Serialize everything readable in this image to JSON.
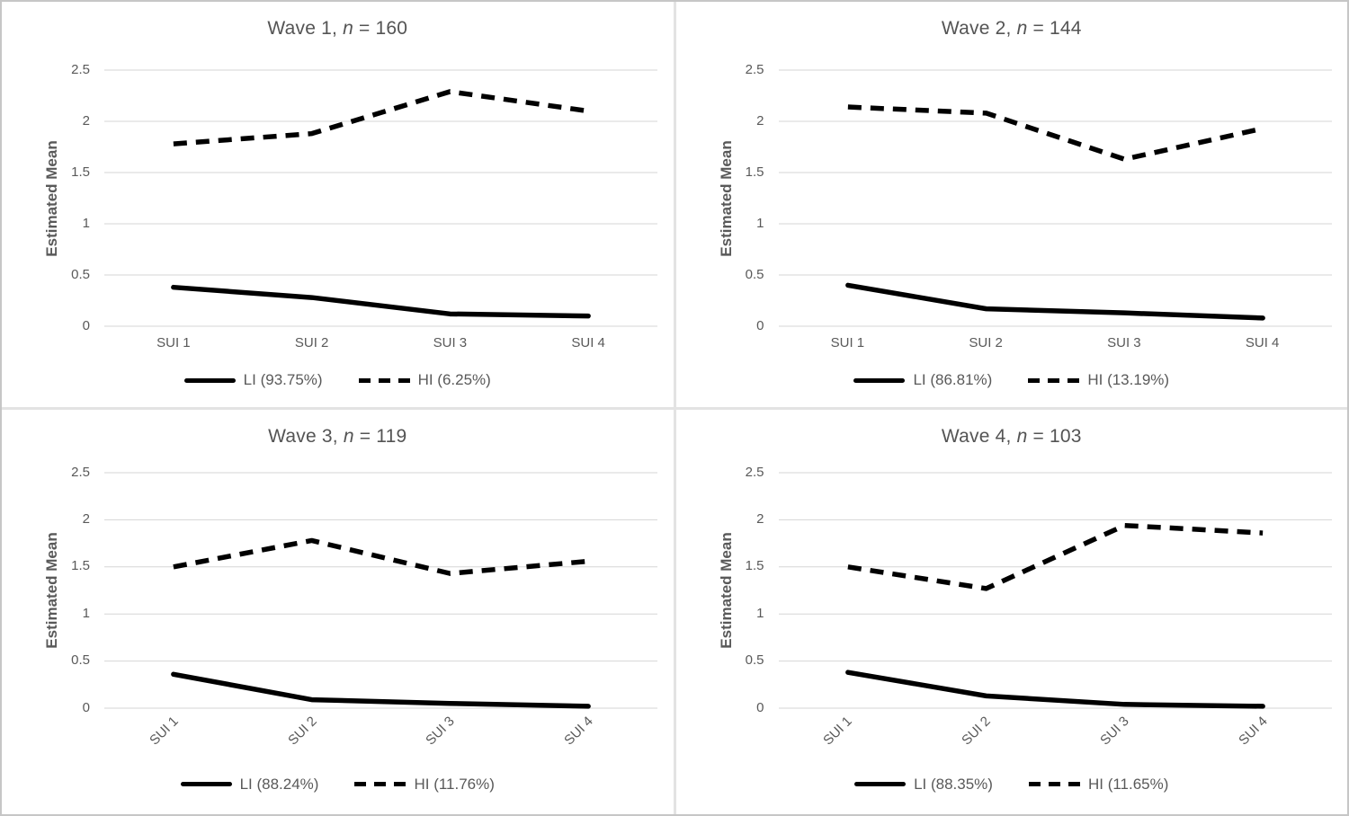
{
  "figure": {
    "ylabel": "Estimated Mean",
    "colors": {
      "line": "#000000",
      "grid": "#d6d6d6",
      "text": "#595959",
      "divider": "#e3e3e3",
      "border": "#c6c6c6",
      "background": "#ffffff"
    }
  },
  "chart_data": [
    {
      "type": "line",
      "title": "Wave 1, n = 160",
      "title_prefix": "Wave 1, ",
      "title_italic": "n",
      "title_suffix": " = 160",
      "n": 160,
      "ylabel": "Estimated Mean",
      "xlabel": "",
      "ylim": [
        0,
        2.5
      ],
      "yticks": [
        0,
        0.5,
        1,
        1.5,
        2,
        2.5
      ],
      "ytick_labels": [
        "0",
        "0.5",
        "1",
        "1.5",
        "2",
        "2.5"
      ],
      "categories": [
        "SUI 1",
        "SUI 2",
        "SUI 3",
        "SUI 4"
      ],
      "x_label_rotation": 0,
      "grid": true,
      "legend_position": "bottom",
      "series": [
        {
          "name": "LI",
          "label": "LI (93.75%)",
          "percent": "93.75%",
          "style": "solid",
          "values": [
            0.38,
            0.28,
            0.12,
            0.1
          ]
        },
        {
          "name": "HI",
          "label": "HI (6.25%)",
          "percent": "6.25%",
          "style": "dashed",
          "values": [
            1.78,
            1.88,
            2.29,
            2.1
          ]
        }
      ]
    },
    {
      "type": "line",
      "title": "Wave 2, n = 144",
      "title_prefix": "Wave 2, ",
      "title_italic": "n",
      "title_suffix": " = 144",
      "n": 144,
      "ylabel": "Estimated Mean",
      "xlabel": "",
      "ylim": [
        0,
        2.5
      ],
      "yticks": [
        0,
        0.5,
        1,
        1.5,
        2,
        2.5
      ],
      "ytick_labels": [
        "0",
        "0.5",
        "1",
        "1.5",
        "2",
        "2.5"
      ],
      "categories": [
        "SUI 1",
        "SUI 2",
        "SUI 3",
        "SUI 4"
      ],
      "x_label_rotation": 0,
      "grid": true,
      "legend_position": "bottom",
      "series": [
        {
          "name": "LI",
          "label": "LI (86.81%)",
          "percent": "86.81%",
          "style": "solid",
          "values": [
            0.4,
            0.17,
            0.13,
            0.08
          ]
        },
        {
          "name": "HI",
          "label": "HI (13.19%)",
          "percent": "13.19%",
          "style": "dashed",
          "values": [
            2.14,
            2.08,
            1.63,
            1.93
          ]
        }
      ]
    },
    {
      "type": "line",
      "title": "Wave 3, n = 119",
      "title_prefix": "Wave 3, ",
      "title_italic": "n",
      "title_suffix": " = 119",
      "n": 119,
      "ylabel": "Estimated Mean",
      "xlabel": "",
      "ylim": [
        0,
        2.5
      ],
      "yticks": [
        0,
        0.5,
        1,
        1.5,
        2,
        2.5
      ],
      "ytick_labels": [
        "0",
        "0.5",
        "1",
        "1.5",
        "2",
        "2.5"
      ],
      "categories": [
        "SUI 1",
        "SUI 2",
        "SUI 3",
        "SUI 4"
      ],
      "x_label_rotation": 45,
      "grid": true,
      "legend_position": "bottom",
      "series": [
        {
          "name": "LI",
          "label": "LI (88.24%)",
          "percent": "88.24%",
          "style": "solid",
          "values": [
            0.36,
            0.09,
            0.05,
            0.02
          ]
        },
        {
          "name": "HI",
          "label": "HI (11.76%)",
          "percent": "11.76%",
          "style": "dashed",
          "values": [
            1.5,
            1.78,
            1.43,
            1.56
          ]
        }
      ]
    },
    {
      "type": "line",
      "title": "Wave 4, n = 103",
      "title_prefix": "Wave 4, ",
      "title_italic": "n",
      "title_suffix": " = 103",
      "n": 103,
      "ylabel": "Estimated Mean",
      "xlabel": "",
      "ylim": [
        0,
        2.5
      ],
      "yticks": [
        0,
        0.5,
        1,
        1.5,
        2,
        2.5
      ],
      "ytick_labels": [
        "0",
        "0.5",
        "1",
        "1.5",
        "2",
        "2.5"
      ],
      "categories": [
        "SUI 1",
        "SUI 2",
        "SUI 3",
        "SUI 4"
      ],
      "x_label_rotation": 45,
      "grid": true,
      "legend_position": "bottom",
      "series": [
        {
          "name": "LI",
          "label": "LI (88.35%)",
          "percent": "88.35%",
          "style": "solid",
          "values": [
            0.38,
            0.13,
            0.04,
            0.02
          ]
        },
        {
          "name": "HI",
          "label": "HI (11.65%)",
          "percent": "11.65%",
          "style": "dashed",
          "values": [
            1.5,
            1.27,
            1.94,
            1.86
          ]
        }
      ]
    }
  ]
}
